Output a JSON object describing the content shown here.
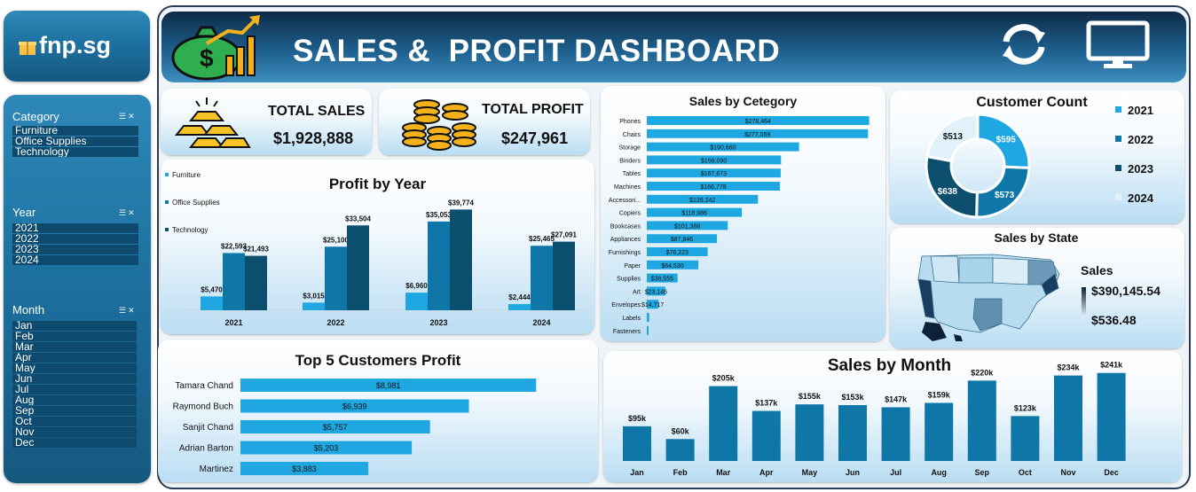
{
  "header": {
    "title": "SALES &  PROFIT DASHBOARD",
    "logo_text": "fnp.sg",
    "refresh_icon": "refresh-icon",
    "monitor_icon": "monitor-icon",
    "money_icon": "money-growth-icon"
  },
  "slicers": {
    "category": {
      "title": "Category",
      "items": [
        "Furniture",
        "Office Supplies",
        "Technology"
      ]
    },
    "year": {
      "title": "Year",
      "items": [
        "2021",
        "2022",
        "2023",
        "2024"
      ]
    },
    "month": {
      "title": "Month",
      "items": [
        "Jan",
        "Feb",
        "Mar",
        "Apr",
        "May",
        "Jun",
        "Jul",
        "Aug",
        "Sep",
        "Oct",
        "Nov",
        "Dec"
      ]
    }
  },
  "kpis": {
    "sales": {
      "label": "TOTAL SALES",
      "value": "$1,928,888",
      "icon": "gold-bars-icon"
    },
    "profit": {
      "label": "TOTAL PROFIT",
      "value": "$247,961",
      "icon": "coin-stacks-icon"
    }
  },
  "colors": {
    "light": "#1ea7e1",
    "mid": "#0f76a8",
    "dark": "#0b4e6e",
    "pale": "#e2f2fb"
  },
  "state_map": {
    "legend_title": "Sales",
    "legend_max": "$390,145.54",
    "legend_min": "$536.48"
  },
  "chart_data": [
    {
      "type": "bar",
      "title": "Profit by Year",
      "categories": [
        "2021",
        "2022",
        "2023",
        "2024"
      ],
      "series": [
        {
          "name": "Furniture",
          "values": [
            5470,
            3015,
            6960,
            2444
          ],
          "labels": [
            "$5,470",
            "$3,015",
            "$6,960",
            "$2,444"
          ]
        },
        {
          "name": "Office Supplies",
          "values": [
            22593,
            25100,
            35053,
            25465
          ],
          "labels": [
            "$22,593",
            "$25,100",
            "$35,053",
            "$25,465"
          ]
        },
        {
          "name": "Technology",
          "values": [
            21493,
            33504,
            39774,
            27091
          ],
          "labels": [
            "$21,493",
            "$33,504",
            "$39,774",
            "$27,091"
          ]
        }
      ],
      "ylim": [
        0,
        42000
      ],
      "legend": "left"
    },
    {
      "type": "bar",
      "title": "Sales  by Cetegory",
      "categories": [
        "Phones",
        "Chairs",
        "Storage",
        "Binders",
        "Tables",
        "Machines",
        "Accessori...",
        "Copiers",
        "Bookcases",
        "Appliances",
        "Furnishings",
        "Paper",
        "Supplies",
        "Art",
        "Envelopes",
        "Labels",
        "Fasteners"
      ],
      "values": [
        278464,
        277059,
        190660,
        168090,
        167673,
        166778,
        139242,
        118986,
        101388,
        87846,
        76223,
        64530,
        38555,
        23146,
        14717,
        3000,
        900
      ],
      "labels": [
        "$278,464",
        "$277,059",
        "$190,660",
        "$168,090",
        "$167,673",
        "$166,778",
        "$139,242",
        "$118,986",
        "$101,388",
        "$87,846",
        "$76,223",
        "$64,530",
        "$38,555",
        "$23,146",
        "$14,717",
        "",
        ""
      ],
      "xlim": [
        0,
        280000
      ],
      "orientation": "horizontal"
    },
    {
      "type": "pie",
      "title": "Customer Count",
      "categories": [
        "2021",
        "2022",
        "2023",
        "2024"
      ],
      "values": [
        595,
        573,
        638,
        513
      ],
      "labels": [
        "$595",
        "$573",
        "$638",
        "$513"
      ],
      "legend": "right"
    },
    {
      "type": "bar",
      "title": "Top 5 Customers Profit",
      "categories": [
        "Tamara Chand",
        "Raymond Buch",
        "Sanjit Chand",
        "Adrian Barton",
        "Martinez"
      ],
      "values": [
        8981,
        6939,
        5757,
        5203,
        3883
      ],
      "labels": [
        "$8,981",
        "$6,939",
        "$5,757",
        "$5,203",
        "$3,883"
      ],
      "xlim": [
        0,
        9000
      ],
      "orientation": "horizontal"
    },
    {
      "type": "bar",
      "title": "Sales by Month",
      "categories": [
        "Jan",
        "Feb",
        "Mar",
        "Apr",
        "May",
        "Jun",
        "Jul",
        "Aug",
        "Sep",
        "Oct",
        "Nov",
        "Dec"
      ],
      "values": [
        95,
        60,
        205,
        137,
        155,
        153,
        147,
        159,
        220,
        123,
        234,
        241
      ],
      "labels": [
        "$95k",
        "$60k",
        "$205k",
        "$137k",
        "$155k",
        "$153k",
        "$147k",
        "$159k",
        "$220k",
        "$123k",
        "$234k",
        "$241k"
      ],
      "ylim": [
        0,
        250
      ]
    }
  ]
}
